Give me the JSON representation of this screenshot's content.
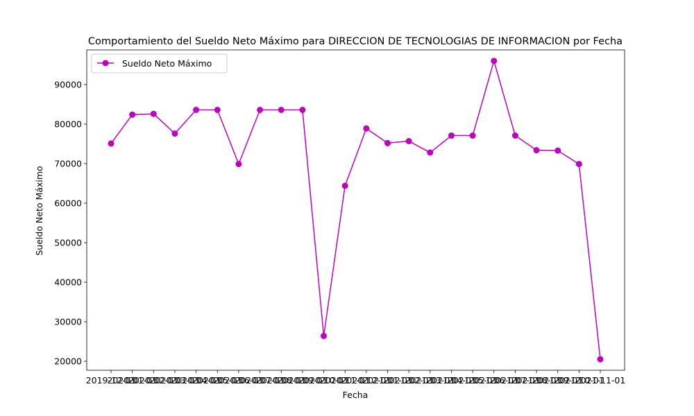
{
  "chart_data": {
    "type": "line",
    "title": "Comportamiento del Sueldo Neto Máximo para DIRECCION DE TECNOLOGIAS DE INFORMACION por Fecha",
    "xlabel": "Fecha",
    "ylabel": "Sueldo Neto Máximo",
    "x": [
      "2019-12-01",
      "2020-01-01",
      "2020-02-01",
      "2020-03-01",
      "2020-04-01",
      "2020-05-01",
      "2020-06-01",
      "2020-07-01",
      "2020-08-01",
      "2020-09-01",
      "2020-10-01",
      "2020-11-01",
      "2020-12-01",
      "2021-01-01",
      "2021-02-01",
      "2021-03-01",
      "2021-04-01",
      "2021-05-01",
      "2021-06-01",
      "2021-07-01",
      "2021-08-01",
      "2021-09-01",
      "2021-10-01",
      "2021-11-01"
    ],
    "series": [
      {
        "name": "Sueldo Neto Máximo",
        "color": "#bf00bf",
        "marker": "circle",
        "values": [
          75100,
          82400,
          82600,
          77600,
          83600,
          83600,
          69900,
          83600,
          83600,
          83600,
          26400,
          64400,
          78900,
          75200,
          75700,
          72800,
          77100,
          77100,
          96000,
          77100,
          73400,
          73300,
          69900,
          20500
        ]
      }
    ],
    "yticks": [
      20000,
      30000,
      40000,
      50000,
      60000,
      70000,
      80000,
      90000
    ],
    "ylim": [
      17725,
      98775
    ],
    "grid": false,
    "legend": "top-left"
  }
}
